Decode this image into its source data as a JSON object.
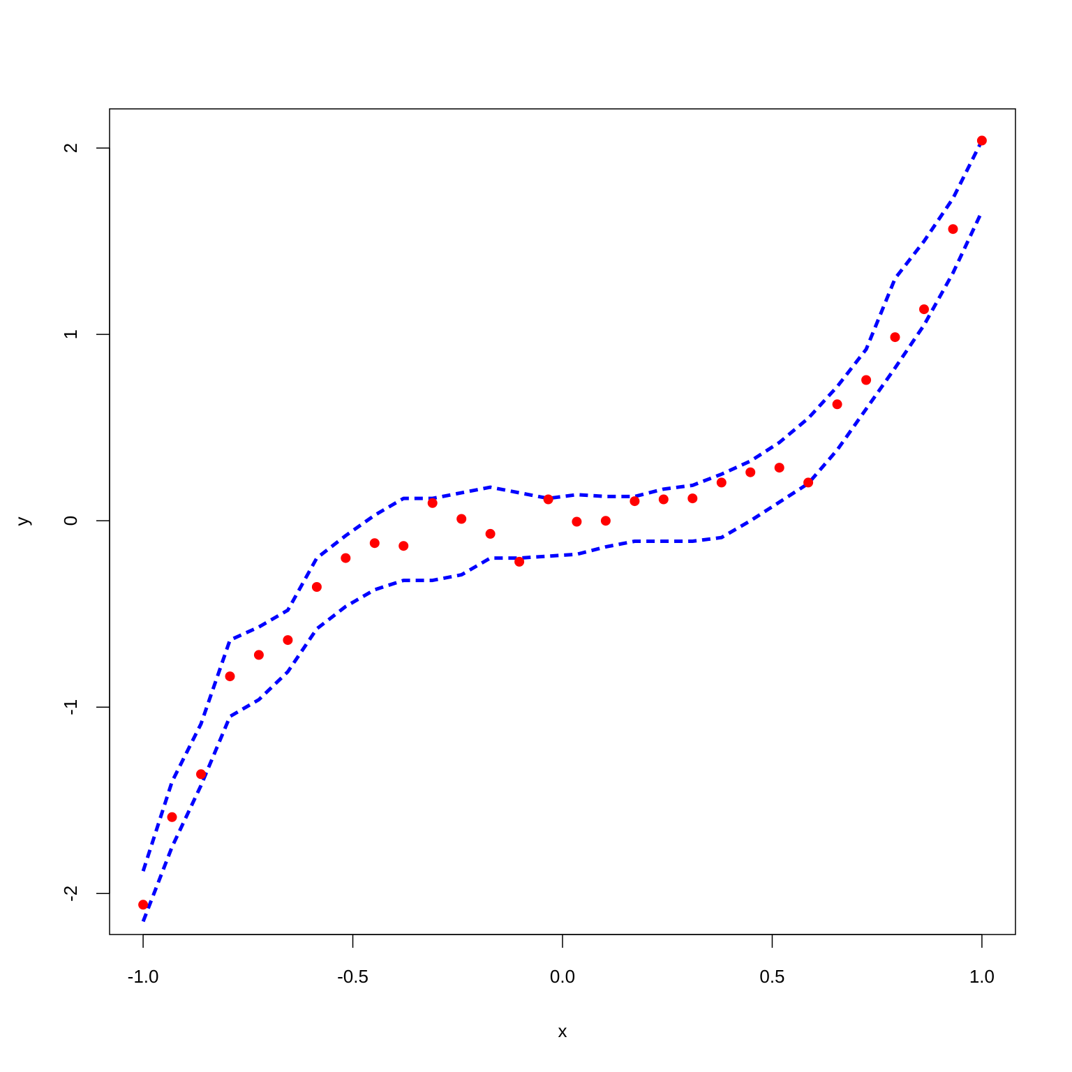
{
  "chart_data": {
    "type": "scatter",
    "title": "",
    "xlabel": "x",
    "ylabel": "y",
    "xlim": [
      -1.08,
      1.08
    ],
    "ylim": [
      -2.22,
      2.21
    ],
    "x_ticks": [
      -1.0,
      -0.5,
      0.0,
      0.5,
      1.0
    ],
    "x_tick_labels": [
      "-1.0",
      "-0.5",
      "0.0",
      "0.5",
      "1.0"
    ],
    "y_ticks": [
      -2,
      -1,
      0,
      1,
      2
    ],
    "y_tick_labels": [
      "-2",
      "-1",
      "0",
      "1",
      "2"
    ],
    "grid": false,
    "points": {
      "color": "#ff0000",
      "x": [
        -1.0,
        -0.931,
        -0.862,
        -0.793,
        -0.724,
        -0.655,
        -0.586,
        -0.517,
        -0.448,
        -0.379,
        -0.31,
        -0.241,
        -0.172,
        -0.103,
        -0.034,
        0.034,
        0.103,
        0.172,
        0.241,
        0.31,
        0.379,
        0.448,
        0.517,
        0.586,
        0.655,
        0.724,
        0.793,
        0.862,
        0.931,
        1.0
      ],
      "y": [
        -2.06,
        -1.59,
        -1.36,
        -0.835,
        -0.72,
        -0.64,
        -0.355,
        -0.2,
        -0.12,
        -0.135,
        0.095,
        0.01,
        -0.07,
        -0.22,
        0.115,
        -0.005,
        0.0,
        0.105,
        0.115,
        0.12,
        0.205,
        0.26,
        0.285,
        0.205,
        0.625,
        0.755,
        0.985,
        1.135,
        1.565,
        2.04
      ]
    },
    "bands": {
      "color": "#0000ff",
      "style": "dashed",
      "x": [
        -1.0,
        -0.931,
        -0.862,
        -0.793,
        -0.724,
        -0.655,
        -0.586,
        -0.517,
        -0.448,
        -0.379,
        -0.31,
        -0.241,
        -0.172,
        -0.103,
        -0.034,
        0.034,
        0.103,
        0.172,
        0.241,
        0.31,
        0.379,
        0.448,
        0.517,
        0.586,
        0.655,
        0.724,
        0.793,
        0.862,
        0.931,
        1.0
      ],
      "upper": [
        -1.88,
        -1.4,
        -1.09,
        -0.64,
        -0.57,
        -0.48,
        -0.2,
        -0.08,
        0.03,
        0.12,
        0.12,
        0.15,
        0.18,
        0.15,
        0.12,
        0.14,
        0.13,
        0.13,
        0.17,
        0.19,
        0.25,
        0.32,
        0.42,
        0.55,
        0.72,
        0.92,
        1.3,
        1.5,
        1.73,
        2.04
      ],
      "lower": [
        -2.15,
        -1.75,
        -1.42,
        -1.05,
        -0.96,
        -0.81,
        -0.58,
        -0.46,
        -0.37,
        -0.32,
        -0.32,
        -0.29,
        -0.2,
        -0.2,
        -0.19,
        -0.18,
        -0.14,
        -0.11,
        -0.11,
        -0.11,
        -0.09,
        0.0,
        0.1,
        0.2,
        0.38,
        0.6,
        0.82,
        1.05,
        1.33,
        1.66
      ]
    }
  }
}
